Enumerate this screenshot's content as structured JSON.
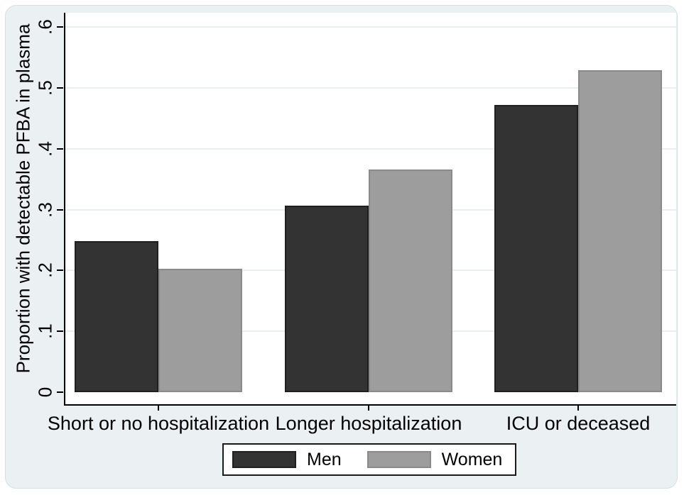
{
  "figure": {
    "panel_background": "#ebf1f3",
    "plot_background": "#ffffff",
    "axis_color": "#000000",
    "grid_color": "#e9eff1",
    "legend_border_color": "#1a1a1a"
  },
  "chart_data": {
    "type": "bar",
    "title": "",
    "xlabel": "",
    "ylabel": "Proportion with detectable PFBA in plasma",
    "categories": [
      "Short or no hospitalization",
      "Longer hospitalization",
      "ICU or deceased"
    ],
    "series": [
      {
        "name": "Men",
        "color": "#333333",
        "border_color": "#1f1f1f",
        "values": [
          0.248,
          0.307,
          0.472
        ]
      },
      {
        "name": "Women",
        "color": "#9d9d9d",
        "border_color": "#8a8a8a",
        "values": [
          0.203,
          0.366,
          0.529
        ]
      }
    ],
    "ylim": [
      0,
      0.6
    ],
    "yticks": [
      0,
      0.1,
      0.2,
      0.3,
      0.4,
      0.5,
      0.6
    ],
    "ytick_labels": [
      "0",
      ".1",
      ".2",
      ".3",
      ".4",
      ".5",
      ".6"
    ],
    "grid": true,
    "legend_position": "bottom-center"
  }
}
